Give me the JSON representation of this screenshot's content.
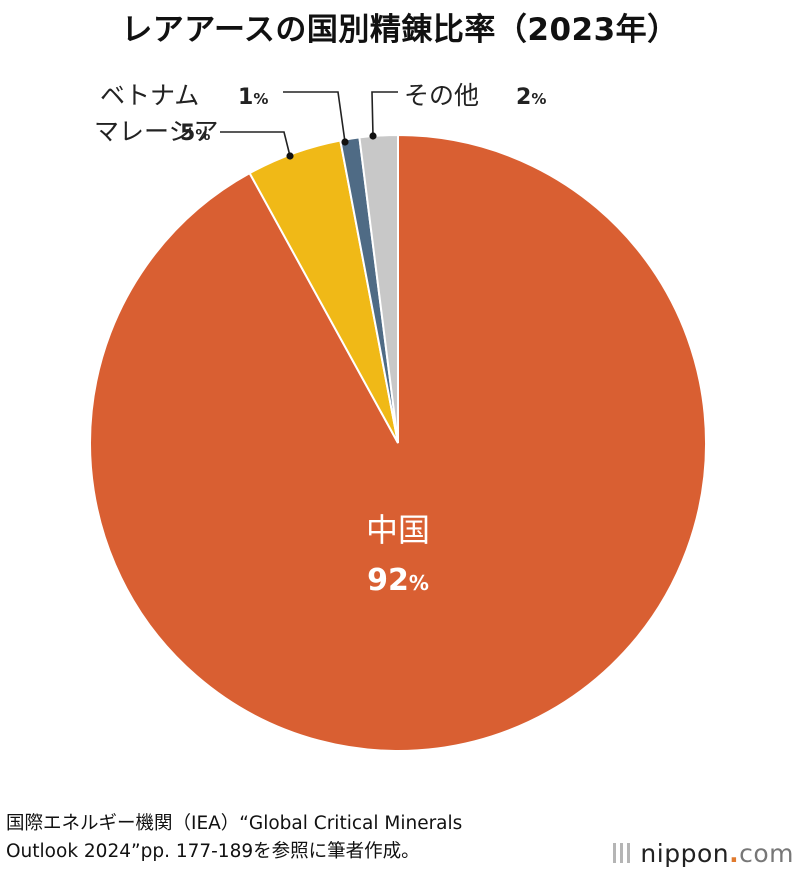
{
  "title": "レアアースの国別精錬比率（2023年）",
  "chart_data": {
    "type": "pie",
    "title": "レアアースの国別精錬比率（2023年）",
    "start_angle_deg": 0,
    "direction": "clockwise",
    "slices": [
      {
        "label": "中国",
        "value": 92,
        "display": "92",
        "unit": "%",
        "color": "#d95f32"
      },
      {
        "label": "マレーシア",
        "value": 5,
        "display": "5",
        "unit": "%",
        "color": "#f0b917"
      },
      {
        "label": "ベトナム",
        "value": 1,
        "display": "1",
        "unit": "%",
        "color": "#4f6b85"
      },
      {
        "label": "その他",
        "value": 2,
        "display": "2",
        "unit": "%",
        "color": "#c8c8c8"
      }
    ]
  },
  "source_note": {
    "line1": "国際エネルギー機関（IEA）“Global Critical Minerals",
    "line2": "Outlook 2024”pp. 177-189を参照に筆者作成。"
  },
  "logo": {
    "main": "nippon",
    "dot": ".",
    "suffix": "com"
  }
}
